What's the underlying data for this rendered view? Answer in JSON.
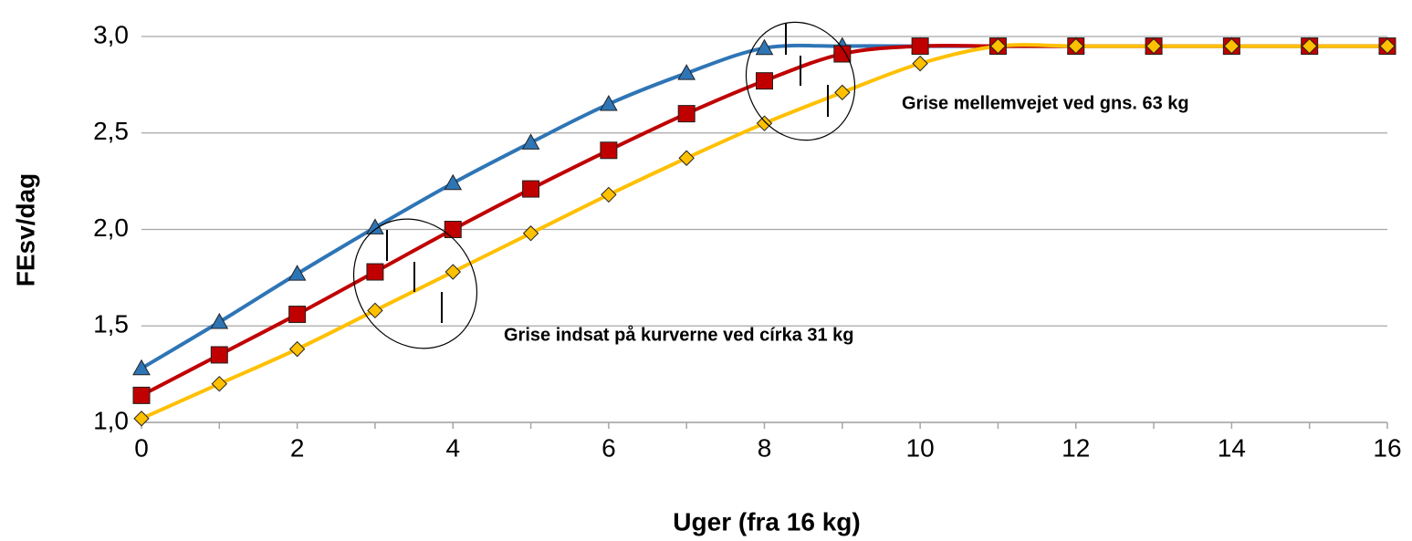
{
  "chart_data": {
    "type": "line",
    "x": [
      0,
      1,
      2,
      3,
      4,
      5,
      6,
      7,
      8,
      9,
      10,
      11,
      12,
      13,
      14,
      15,
      16
    ],
    "series": [
      {
        "color": "#2e75b6",
        "marker": "triangle",
        "values": [
          1.28,
          1.52,
          1.77,
          2.01,
          2.24,
          2.45,
          2.65,
          2.81,
          2.94,
          2.95,
          2.95,
          2.95,
          2.95,
          2.95,
          2.95,
          2.95,
          2.95
        ]
      },
      {
        "color": "#c00000",
        "marker": "square",
        "values": [
          1.14,
          1.35,
          1.56,
          1.78,
          2.0,
          2.21,
          2.41,
          2.6,
          2.77,
          2.91,
          2.95,
          2.95,
          2.95,
          2.95,
          2.95,
          2.95,
          2.95
        ]
      },
      {
        "color": "#ffc000",
        "marker": "diamond",
        "values": [
          1.02,
          1.2,
          1.38,
          1.58,
          1.78,
          1.98,
          2.18,
          2.37,
          2.55,
          2.71,
          2.86,
          2.95,
          2.95,
          2.95,
          2.95,
          2.95,
          2.95
        ]
      }
    ],
    "xlabel": "Uger (fra 16 kg)",
    "ylabel": "FEsv/dag",
    "xlim": [
      0,
      16
    ],
    "xticks": [
      0,
      2,
      4,
      6,
      8,
      10,
      12,
      14,
      16
    ],
    "ylim": [
      1.0,
      3.0
    ],
    "yticks": [
      {
        "value": 1.0,
        "label": "1,0"
      },
      {
        "value": 1.5,
        "label": "1,5"
      },
      {
        "value": 2.0,
        "label": "2,0"
      },
      {
        "value": 2.5,
        "label": "2,5"
      },
      {
        "value": 3.0,
        "label": "3,0"
      }
    ],
    "grid": true,
    "annotations": [
      "Grise mellemvejet ved gns. 63 kg",
      "Grise indsat på kurverne ved círka 31 kg"
    ]
  }
}
